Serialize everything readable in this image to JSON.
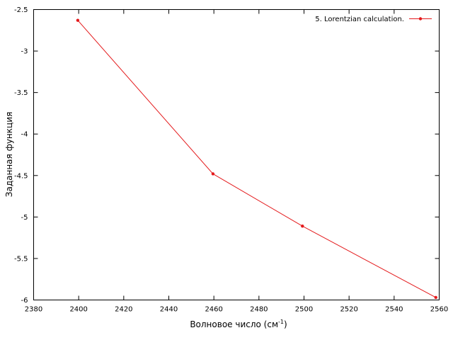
{
  "chart_data": {
    "type": "line",
    "title": "",
    "xlabel": "Волновое число (см",
    "xlabel_sup": "-1",
    "xlabel_close": ")",
    "ylabel": "Заданная функция",
    "xlim": [
      2380,
      2560
    ],
    "ylim": [
      -6,
      -2.5
    ],
    "x_ticks": [
      "2380",
      "2400",
      "2420",
      "2440",
      "2460",
      "2480",
      "2500",
      "2520",
      "2540",
      "2560"
    ],
    "y_ticks": [
      "-2.5",
      "-3",
      "-3.5",
      "-4",
      "-4.5",
      "-5",
      "-5.5",
      "-6"
    ],
    "grid": false,
    "legend_position": "top-right",
    "series": [
      {
        "name": "5. Lorentzian calculation.",
        "color": "#e41a1c",
        "marker": "circle",
        "x": [
          2399.6,
          2459.6,
          2499.3,
          2558.5
        ],
        "y": [
          -2.63,
          -4.48,
          -5.11,
          -5.97
        ]
      }
    ]
  }
}
